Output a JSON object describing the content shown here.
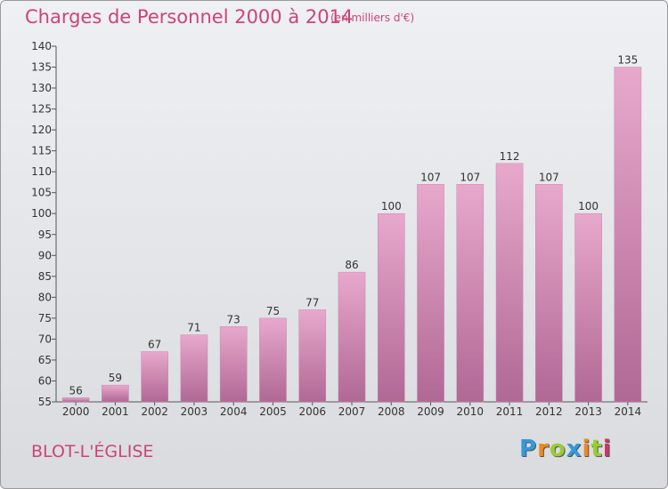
{
  "header": {
    "title": "Charges de Personnel 2000 à 2014",
    "unit": "(en milliers d'€)"
  },
  "footer": {
    "place": "BLOT-L'ÉGLISE",
    "logo_letters": [
      "P",
      "r",
      "o",
      "x",
      "i",
      "t",
      "i"
    ],
    "logo_colors": [
      "#3399dd",
      "#ee8822",
      "#99cc33",
      "#3399dd",
      "#ee8822",
      "#99cc33",
      "#cc3366"
    ]
  },
  "colors": {
    "bar_top": "#e8a8cc",
    "bar_bottom": "#b06894",
    "text_accent": "#cc4477"
  },
  "chart_data": {
    "type": "bar",
    "title": "Charges de Personnel 2000 à 2014",
    "subtitle": "(en milliers d'€)",
    "categories": [
      "2000",
      "2001",
      "2002",
      "2003",
      "2004",
      "2005",
      "2006",
      "2007",
      "2008",
      "2009",
      "2010",
      "2011",
      "2012",
      "2013",
      "2014"
    ],
    "values": [
      56,
      59,
      67,
      71,
      73,
      75,
      77,
      86,
      100,
      107,
      107,
      112,
      107,
      100,
      135
    ],
    "ylim": [
      55,
      140
    ],
    "yticks": [
      55,
      60,
      65,
      70,
      75,
      80,
      85,
      90,
      95,
      100,
      105,
      110,
      115,
      120,
      125,
      130,
      135,
      140
    ],
    "grid": false,
    "legend": "none"
  }
}
